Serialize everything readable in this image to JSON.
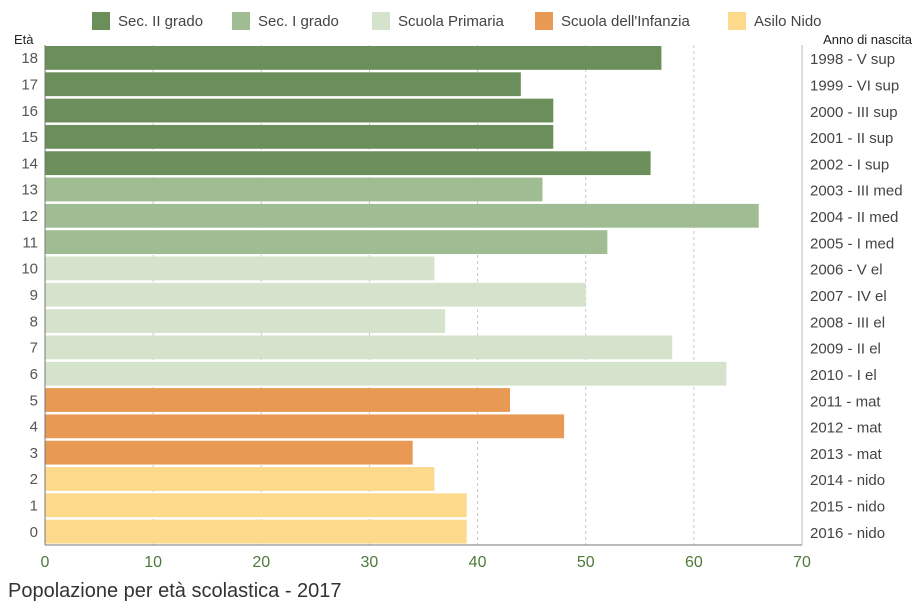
{
  "chart_data": {
    "type": "bar",
    "orientation": "horizontal",
    "title": "Popolazione per età scolastica - 2017",
    "left_axis_title": "Età",
    "right_axis_title": "Anno di nascita",
    "xlim": [
      0,
      70
    ],
    "x_ticks": [
      0,
      10,
      20,
      30,
      40,
      50,
      60,
      70
    ],
    "grid": "vertical dashed",
    "legend_position": "top",
    "legend": [
      {
        "name": "Sec. II grado",
        "color": "#6b8f5a"
      },
      {
        "name": "Sec. I grado",
        "color": "#9fbc92"
      },
      {
        "name": "Scuola Primaria",
        "color": "#d6e3cc"
      },
      {
        "name": "Scuola dell'Infanzia",
        "color": "#e89a55"
      },
      {
        "name": "Asilo Nido",
        "color": "#fdd98c"
      }
    ],
    "bars": [
      {
        "age": "18",
        "year_label": "1998 - V sup",
        "value": 57,
        "group": 0
      },
      {
        "age": "17",
        "year_label": "1999 - VI sup",
        "value": 44,
        "group": 0
      },
      {
        "age": "16",
        "year_label": "2000 - III sup",
        "value": 47,
        "group": 0
      },
      {
        "age": "15",
        "year_label": "2001 - II sup",
        "value": 47,
        "group": 0
      },
      {
        "age": "14",
        "year_label": "2002 - I sup",
        "value": 56,
        "group": 0
      },
      {
        "age": "13",
        "year_label": "2003 - III med",
        "value": 46,
        "group": 1
      },
      {
        "age": "12",
        "year_label": "2004 - II med",
        "value": 66,
        "group": 1
      },
      {
        "age": "11",
        "year_label": "2005 - I med",
        "value": 52,
        "group": 1
      },
      {
        "age": "10",
        "year_label": "2006 - V el",
        "value": 36,
        "group": 2
      },
      {
        "age": "9",
        "year_label": "2007 - IV el",
        "value": 50,
        "group": 2
      },
      {
        "age": "8",
        "year_label": "2008 - III el",
        "value": 37,
        "group": 2
      },
      {
        "age": "7",
        "year_label": "2009 - II el",
        "value": 58,
        "group": 2
      },
      {
        "age": "6",
        "year_label": "2010 - I el",
        "value": 63,
        "group": 2
      },
      {
        "age": "5",
        "year_label": "2011 - mat",
        "value": 43,
        "group": 3
      },
      {
        "age": "4",
        "year_label": "2012 - mat",
        "value": 48,
        "group": 3
      },
      {
        "age": "3",
        "year_label": "2013 - mat",
        "value": 34,
        "group": 3
      },
      {
        "age": "2",
        "year_label": "2014 - nido",
        "value": 36,
        "group": 4
      },
      {
        "age": "1",
        "year_label": "2015 - nido",
        "value": 39,
        "group": 4
      },
      {
        "age": "0",
        "year_label": "2016 - nido",
        "value": 39,
        "group": 4
      }
    ]
  }
}
